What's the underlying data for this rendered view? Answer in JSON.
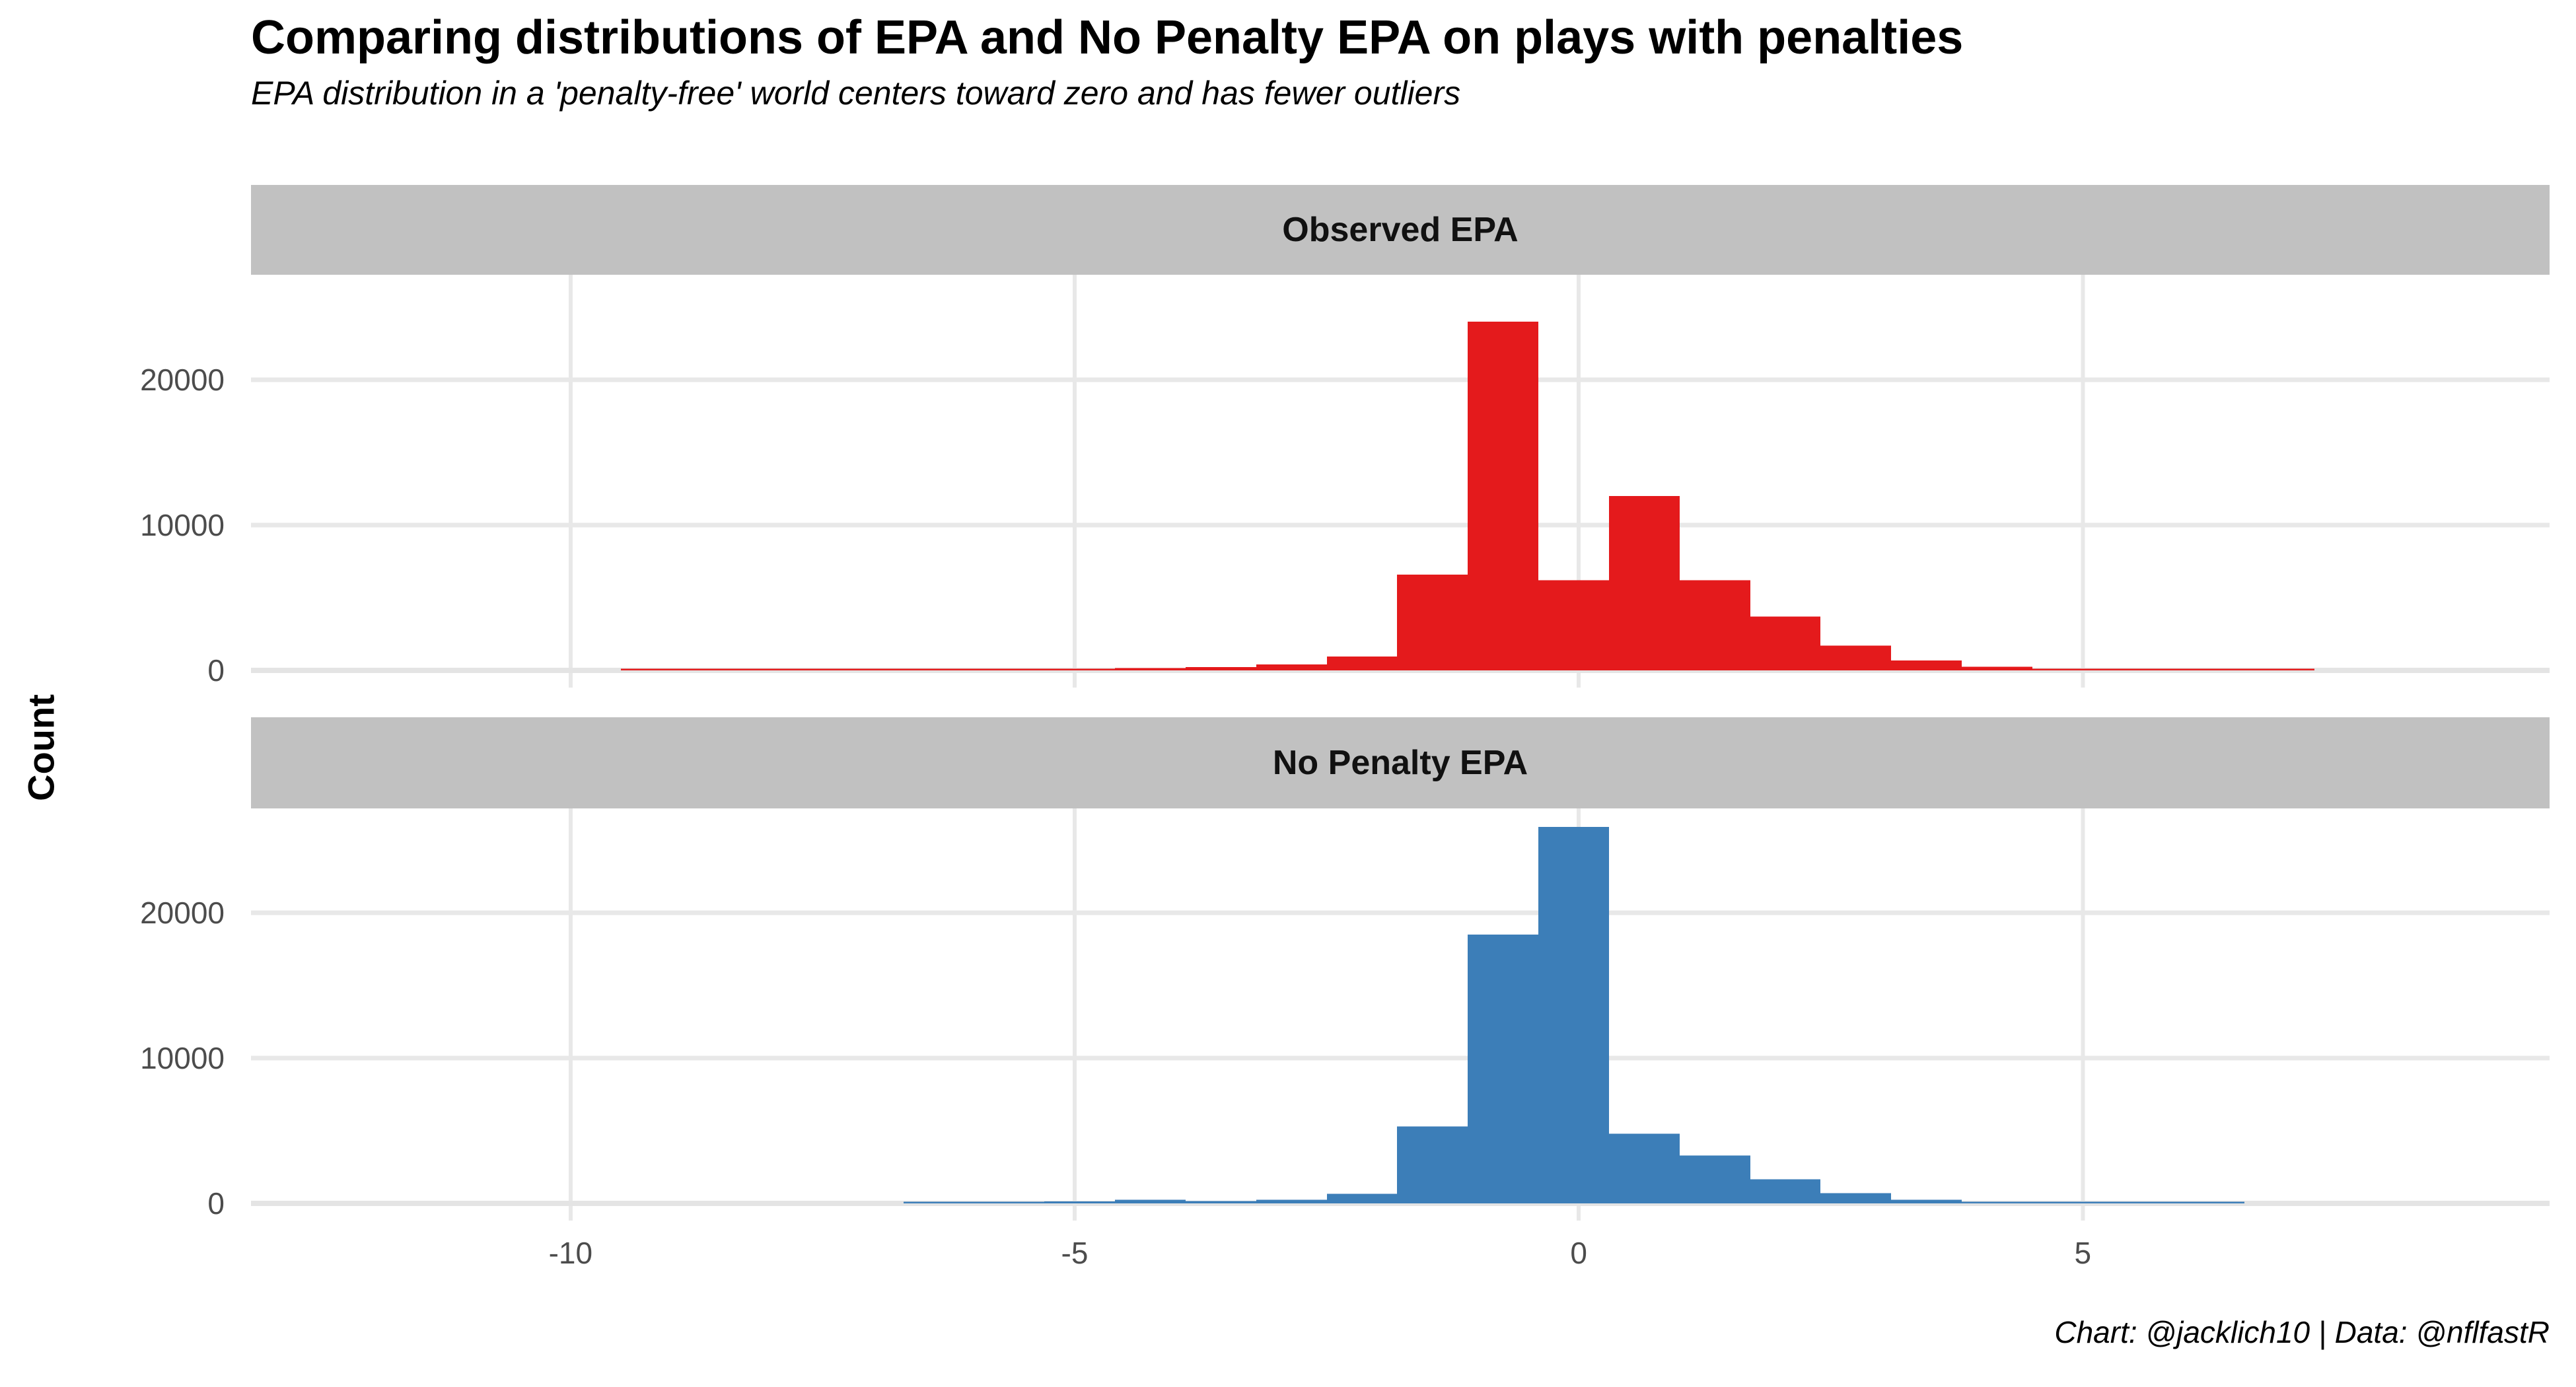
{
  "title": "Comparing distributions of EPA and No Penalty EPA on plays with penalties",
  "subtitle": "EPA distribution in a 'penalty-free' world centers toward zero and has fewer outliers",
  "caption": "Chart: @jacklich10 | Data: @nflfastR",
  "y_axis": {
    "title": "Count",
    "ticks": [
      0,
      10000,
      20000
    ],
    "tick_labels": [
      "0",
      "10000",
      "20000"
    ],
    "range": [
      0,
      27200
    ]
  },
  "x_axis": {
    "ticks": [
      -10,
      -5,
      0,
      5
    ],
    "tick_labels": [
      "-10",
      "-5",
      "0",
      "5"
    ],
    "range": [
      -13.17,
      9.63
    ]
  },
  "colors": {
    "observed": "#E41A1C",
    "no_penalty": "#3C7EB8",
    "strip_bg": "#C1C1C1",
    "gridline": "#E8E8E8",
    "tick_text": "#4C4C4C"
  },
  "chart_data": {
    "type": "bar",
    "subtype": "faceted-histogram",
    "x_variable": "EPA",
    "ylabel": "Count",
    "grid": "major-only",
    "legend": "none",
    "facets": [
      {
        "label": "Observed EPA",
        "color": "#E41A1C",
        "bins": [
          {
            "x0": -9.5,
            "x1": -8.8,
            "count": 15
          },
          {
            "x0": -8.8,
            "x1": -8.1,
            "count": 18
          },
          {
            "x0": -8.1,
            "x1": -7.4,
            "count": 20
          },
          {
            "x0": -7.4,
            "x1": -6.7,
            "count": 25
          },
          {
            "x0": -6.7,
            "x1": -6.0,
            "count": 35
          },
          {
            "x0": -6.0,
            "x1": -5.3,
            "count": 55
          },
          {
            "x0": -5.3,
            "x1": -4.6,
            "count": 85
          },
          {
            "x0": -4.6,
            "x1": -3.9,
            "count": 150
          },
          {
            "x0": -3.9,
            "x1": -3.2,
            "count": 230
          },
          {
            "x0": -3.2,
            "x1": -2.5,
            "count": 400
          },
          {
            "x0": -2.5,
            "x1": -1.8,
            "count": 950
          },
          {
            "x0": -1.8,
            "x1": -1.1,
            "count": 6600
          },
          {
            "x0": -1.1,
            "x1": -0.4,
            "count": 24000
          },
          {
            "x0": -0.4,
            "x1": 0.3,
            "count": 6200
          },
          {
            "x0": 0.3,
            "x1": 1.0,
            "count": 12000
          },
          {
            "x0": 1.0,
            "x1": 1.7,
            "count": 6200
          },
          {
            "x0": 1.7,
            "x1": 2.4,
            "count": 3700
          },
          {
            "x0": 2.4,
            "x1": 3.1,
            "count": 1700
          },
          {
            "x0": 3.1,
            "x1": 3.8,
            "count": 680
          },
          {
            "x0": 3.8,
            "x1": 4.5,
            "count": 260
          },
          {
            "x0": 4.5,
            "x1": 5.2,
            "count": 90
          },
          {
            "x0": 5.2,
            "x1": 5.9,
            "count": 40
          },
          {
            "x0": 5.9,
            "x1": 6.6,
            "count": 25
          },
          {
            "x0": 6.6,
            "x1": 7.3,
            "count": 15
          }
        ]
      },
      {
        "label": "No Penalty EPA",
        "color": "#3C7EB8",
        "bins": [
          {
            "x0": -6.7,
            "x1": -6.0,
            "count": 20
          },
          {
            "x0": -6.0,
            "x1": -5.3,
            "count": 60
          },
          {
            "x0": -5.3,
            "x1": -4.6,
            "count": 130
          },
          {
            "x0": -4.6,
            "x1": -3.9,
            "count": 240
          },
          {
            "x0": -3.9,
            "x1": -3.2,
            "count": 150
          },
          {
            "x0": -3.2,
            "x1": -2.5,
            "count": 250
          },
          {
            "x0": -2.5,
            "x1": -1.8,
            "count": 650
          },
          {
            "x0": -1.8,
            "x1": -1.1,
            "count": 5300
          },
          {
            "x0": -1.1,
            "x1": -0.4,
            "count": 18500
          },
          {
            "x0": -0.4,
            "x1": 0.3,
            "count": 25900
          },
          {
            "x0": 0.3,
            "x1": 1.0,
            "count": 4800
          },
          {
            "x0": 1.0,
            "x1": 1.7,
            "count": 3300
          },
          {
            "x0": 1.7,
            "x1": 2.4,
            "count": 1650
          },
          {
            "x0": 2.4,
            "x1": 3.1,
            "count": 700
          },
          {
            "x0": 3.1,
            "x1": 3.8,
            "count": 240
          },
          {
            "x0": 3.8,
            "x1": 4.5,
            "count": 110
          },
          {
            "x0": 4.5,
            "x1": 5.2,
            "count": 45
          },
          {
            "x0": 5.2,
            "x1": 5.9,
            "count": 25
          },
          {
            "x0": 5.9,
            "x1": 6.6,
            "count": 15
          }
        ]
      }
    ]
  }
}
